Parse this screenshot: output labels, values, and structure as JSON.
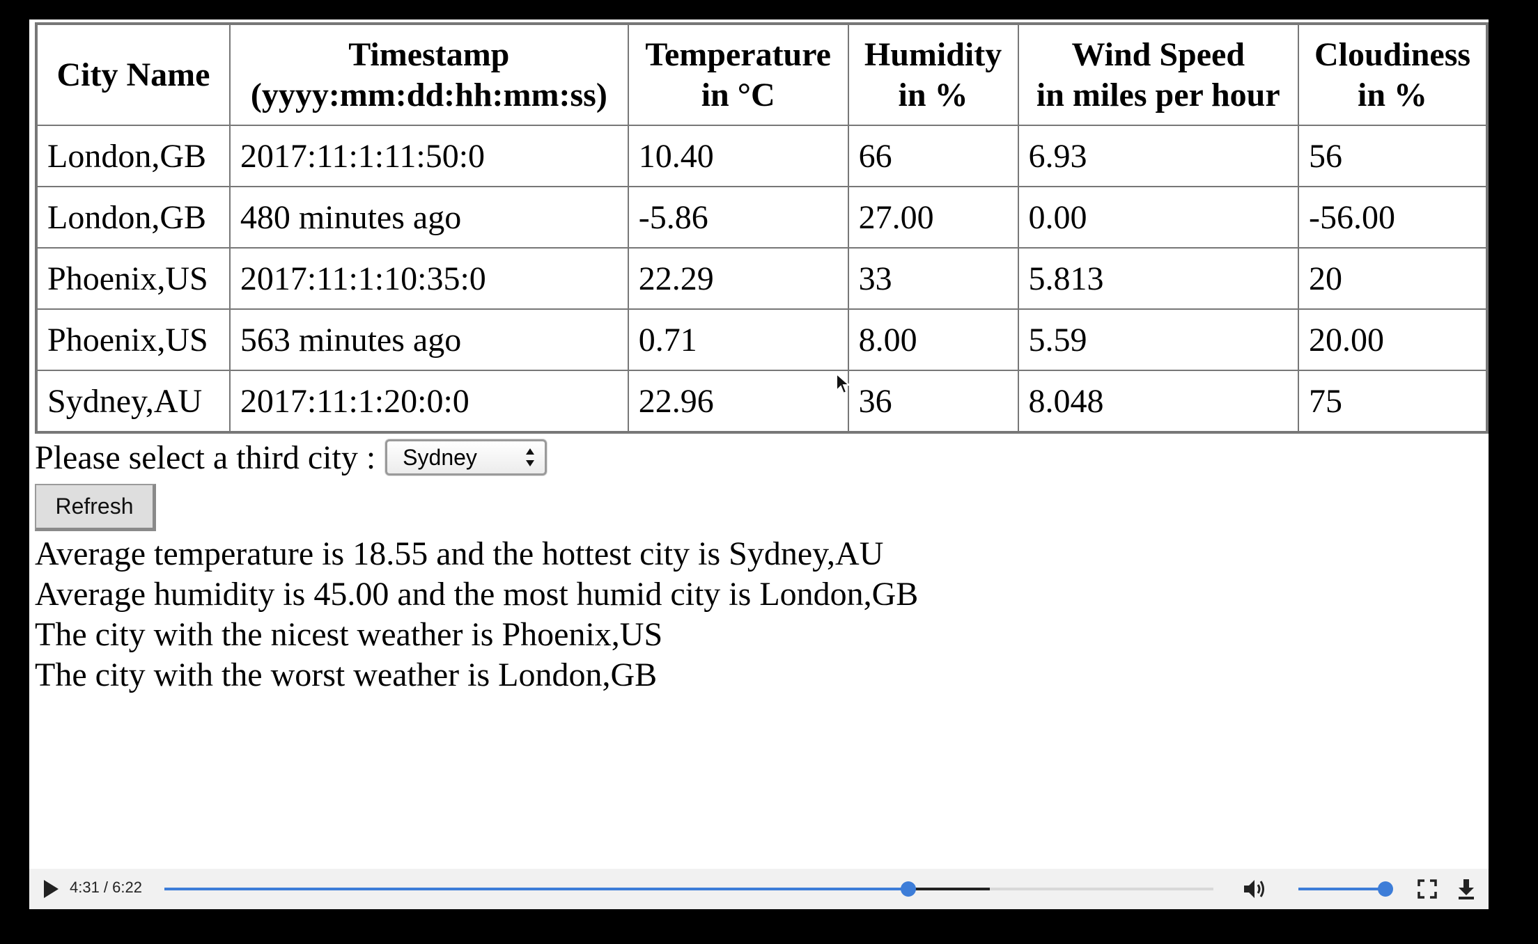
{
  "table": {
    "headers": [
      "City Name",
      "Timestamp\n(yyyy:mm:dd:hh:mm:ss)",
      "Temperature\nin °C",
      "Humidity\nin %",
      "Wind Speed\nin miles per hour",
      "Cloudiness\nin %"
    ],
    "rows": [
      [
        "London,GB",
        "2017:11:1:11:50:0",
        "10.40",
        "66",
        "6.93",
        "56"
      ],
      [
        "London,GB",
        "480 minutes ago",
        "-5.86",
        "27.00",
        "0.00",
        "-56.00"
      ],
      [
        "Phoenix,US",
        "2017:11:1:10:35:0",
        "22.29",
        "33",
        "5.813",
        "20"
      ],
      [
        "Phoenix,US",
        "563 minutes ago",
        "0.71",
        "8.00",
        "5.59",
        "20.00"
      ],
      [
        "Sydney,AU",
        "2017:11:1:20:0:0",
        "22.96",
        "36",
        "8.048",
        "75"
      ]
    ]
  },
  "city_select": {
    "label": "Please select a third city :",
    "selected": "Sydney"
  },
  "refresh_label": "Refresh",
  "results": [
    "Average temperature is 18.55 and the hottest city is Sydney,AU",
    "Average humidity is 45.00 and the most humid city is London,GB",
    "The city with the nicest weather is Phoenix,US",
    "The city with the worst weather is London,GB"
  ],
  "player": {
    "time": "4:31 / 6:22",
    "progress_fraction": 0.7094,
    "buffered_fraction": 0.7867,
    "volume_fraction": 0.95,
    "accent_color": "#3d7dd8",
    "icons": [
      "play-icon",
      "volume-icon",
      "fullscreen-icon",
      "download-icon"
    ]
  }
}
